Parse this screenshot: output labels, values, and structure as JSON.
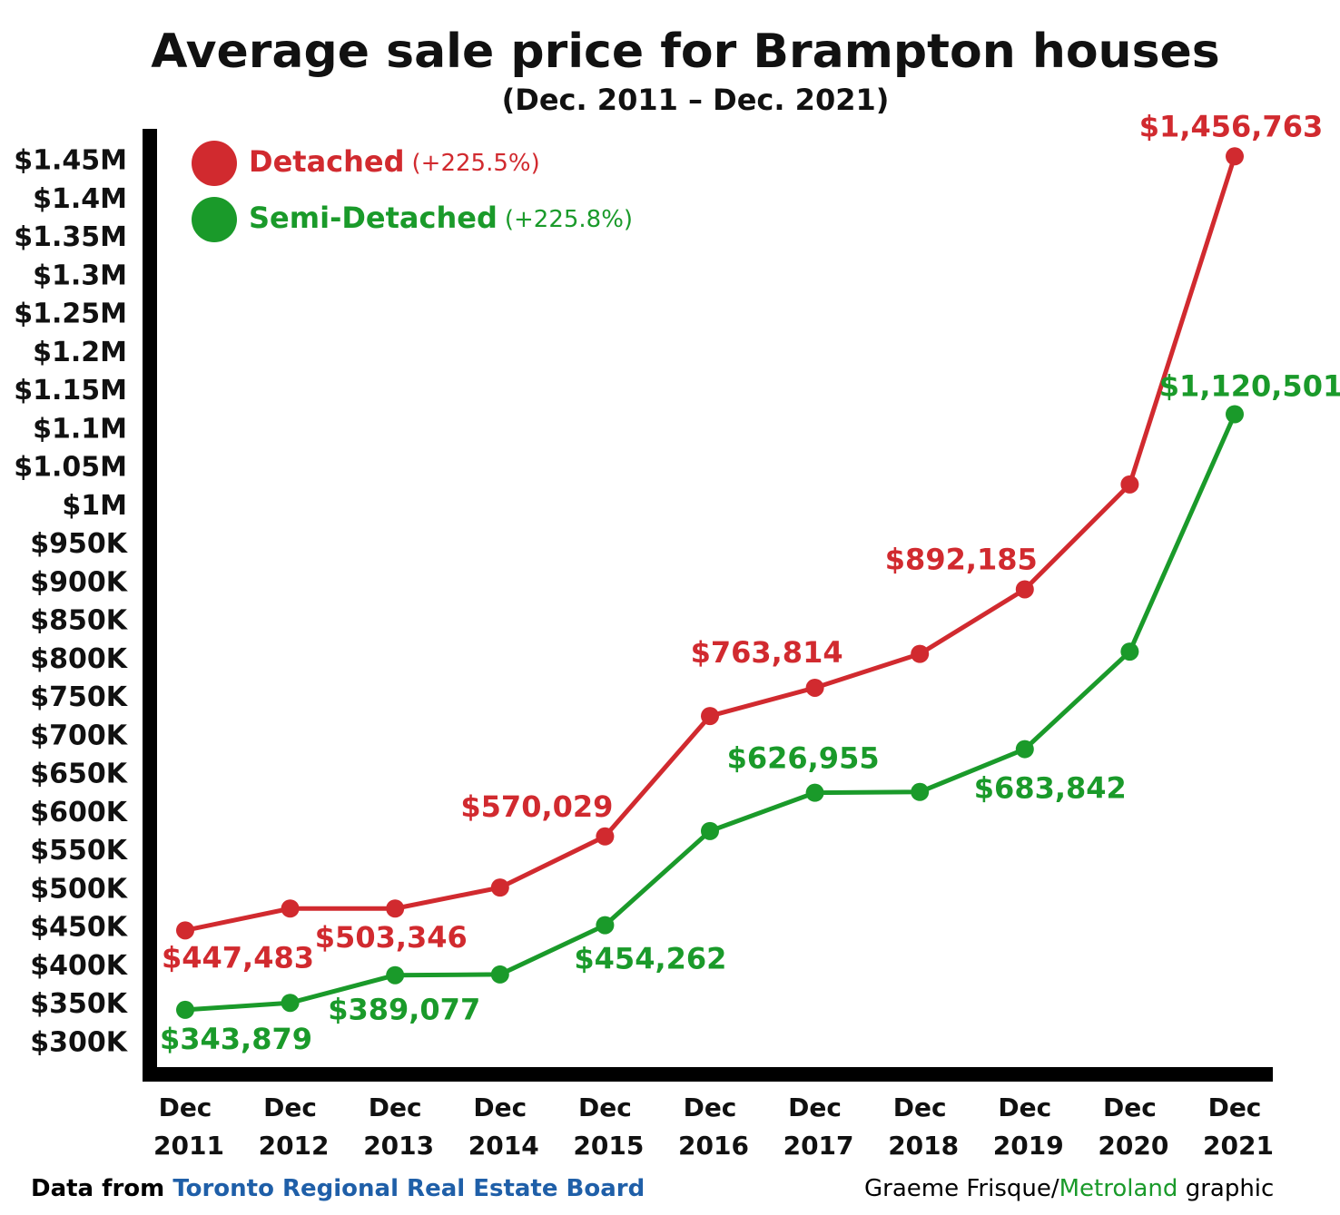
{
  "chart_data": {
    "type": "line",
    "title": "Average sale price for Brampton houses",
    "subtitle": "(Dec. 2011 – Dec. 2021)",
    "categories": [
      "Dec 2011",
      "Dec 2012",
      "Dec 2013",
      "Dec 2014",
      "Dec 2015",
      "Dec 2016",
      "Dec 2017",
      "Dec 2018",
      "Dec 2019",
      "Dec 2020",
      "Dec 2021"
    ],
    "series": [
      {
        "name": "Detached",
        "note": "(+225.5%)",
        "color": "#d12a2f",
        "values": [
          447483,
          476000,
          476000,
          503346,
          570029,
          727000,
          763814,
          808000,
          892185,
          1029000,
          1456763
        ],
        "value_labels": [
          "$447,483",
          null,
          null,
          "$503,346",
          "$570,029",
          null,
          "$763,814",
          null,
          "$892,185",
          null,
          "$1,456,763"
        ]
      },
      {
        "name": "Semi-Detached",
        "note": "(+225.8%)",
        "color": "#1a9a2a",
        "values": [
          343879,
          353000,
          389077,
          390000,
          454262,
          577000,
          626955,
          628000,
          683842,
          811000,
          1120501
        ],
        "value_labels": [
          "$343,879",
          null,
          "$389,077",
          null,
          "$454,262",
          null,
          "$626,955",
          null,
          "$683,842",
          null,
          "$1,120,501"
        ]
      }
    ],
    "ylim": [
      300000,
      1450000
    ],
    "yticks": [
      {
        "value": 300000,
        "label": "$300K"
      },
      {
        "value": 350000,
        "label": "$350K"
      },
      {
        "value": 400000,
        "label": "$400K"
      },
      {
        "value": 450000,
        "label": "$450K"
      },
      {
        "value": 500000,
        "label": "$500K"
      },
      {
        "value": 550000,
        "label": "$550K"
      },
      {
        "value": 600000,
        "label": "$600K"
      },
      {
        "value": 650000,
        "label": "$650K"
      },
      {
        "value": 700000,
        "label": "$700K"
      },
      {
        "value": 750000,
        "label": "$750K"
      },
      {
        "value": 800000,
        "label": "$800K"
      },
      {
        "value": 850000,
        "label": "$850K"
      },
      {
        "value": 900000,
        "label": "$900K"
      },
      {
        "value": 950000,
        "label": "$950K"
      },
      {
        "value": 1000000,
        "label": "$1M"
      },
      {
        "value": 1050000,
        "label": "$1.05M"
      },
      {
        "value": 1100000,
        "label": "$1.1M"
      },
      {
        "value": 1150000,
        "label": "$1.15M"
      },
      {
        "value": 1200000,
        "label": "$1.2M"
      },
      {
        "value": 1250000,
        "label": "$1.25M"
      },
      {
        "value": 1300000,
        "label": "$1.3M"
      },
      {
        "value": 1350000,
        "label": "$1.35M"
      },
      {
        "value": 1400000,
        "label": "$1.4M"
      },
      {
        "value": 1450000,
        "label": "$1.45M"
      }
    ],
    "grid": false,
    "legend": "top-left",
    "source": {
      "prefix": "Data from",
      "name": "Toronto Regional Real Estate Board"
    },
    "credit": {
      "author": "Graeme Frisque/",
      "org": "Metroland",
      "suffix": "graphic"
    }
  }
}
